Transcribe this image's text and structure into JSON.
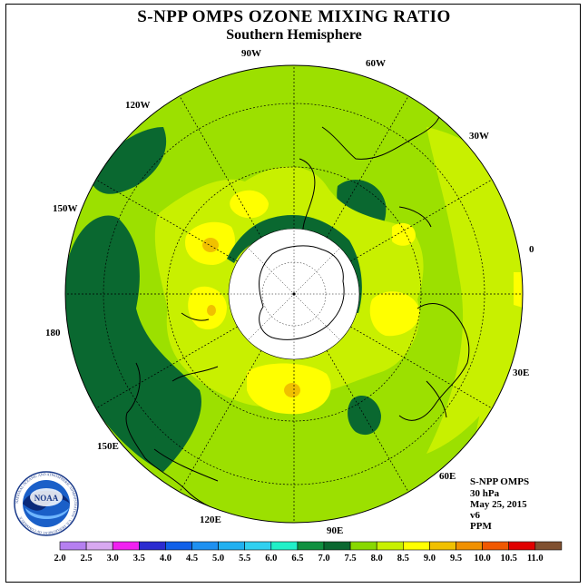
{
  "title": "S-NPP OMPS OZONE MIXING RATIO",
  "subtitle": "Southern Hemisphere",
  "longitude_labels": {
    "90W": "90W",
    "60W": "60W",
    "30W": "30W",
    "0": "0",
    "30E": "30E",
    "60E": "60E",
    "90E": "90E",
    "120E": "120E",
    "150E": "150E",
    "180": "180",
    "150W": "150W",
    "120W": "120W"
  },
  "info": {
    "instrument": "S-NPP OMPS",
    "level": "30 hPa",
    "date": "May 25, 2015",
    "version": "v6",
    "units": "PPM"
  },
  "logo": {
    "text": "NOAA",
    "ring_text": "NATIONAL OCEANIC AND ATMOSPHERIC ADMINISTRATION · U.S. DEPARTMENT OF COMMERCE"
  },
  "colorbar": {
    "labels": [
      "2.0",
      "2.5",
      "3.0",
      "3.5",
      "4.0",
      "4.5",
      "5.0",
      "5.5",
      "6.0",
      "6.5",
      "7.0",
      "7.5",
      "8.0",
      "8.5",
      "9.0",
      "9.5",
      "10.0",
      "10.5",
      "11.0"
    ],
    "colors": [
      "#b57ff0",
      "#d8a8f0",
      "#f020f0",
      "#2b2bd0",
      "#1060e8",
      "#1e90f0",
      "#20b0f0",
      "#30d0f0",
      "#20f0c8",
      "#109040",
      "#0a6830",
      "#88d800",
      "#c8f000",
      "#ffff00",
      "#f0c000",
      "#f09000",
      "#f05800",
      "#e00000",
      "#805030"
    ]
  },
  "colors": {
    "background_field": "#9ce000",
    "dark_green": "#0a6830",
    "medium_green": "#109040",
    "yellow_green": "#c8f000",
    "yellow": "#ffff00",
    "orange": "#f0c000"
  }
}
